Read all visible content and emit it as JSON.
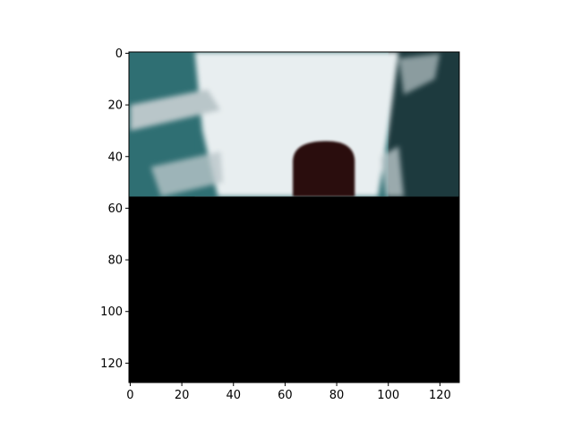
{
  "chart_data": {
    "type": "heatmap",
    "title": "",
    "xlabel": "",
    "ylabel": "",
    "image_size": [
      128,
      128
    ],
    "xlim": [
      -0.5,
      127.5
    ],
    "ylim": [
      127.5,
      -0.5
    ],
    "y_axis_inverted": true,
    "x_ticks": [
      0,
      20,
      40,
      60,
      80,
      100,
      120
    ],
    "y_ticks": [
      0,
      20,
      40,
      60,
      80,
      100,
      120
    ],
    "x_tick_labels": [
      "0",
      "20",
      "40",
      "60",
      "80",
      "100",
      "120"
    ],
    "y_tick_labels": [
      "0",
      "20",
      "40",
      "60",
      "80",
      "100",
      "120"
    ],
    "grid": false,
    "legend": "none",
    "content": {
      "visible_rows": [
        0,
        55
      ],
      "masked_rows": [
        56,
        127
      ],
      "masked_color": "#000000",
      "dark_object": {
        "center_col": 76,
        "top_row": 34,
        "col_range": [
          63,
          87
        ]
      },
      "palette": {
        "foam": "#e8eef0",
        "foam_shadow": "#b9c6c9",
        "water_teal": "#2f6f73",
        "water_dark": "#1d3a3e",
        "object": "#2a0f10"
      }
    }
  }
}
